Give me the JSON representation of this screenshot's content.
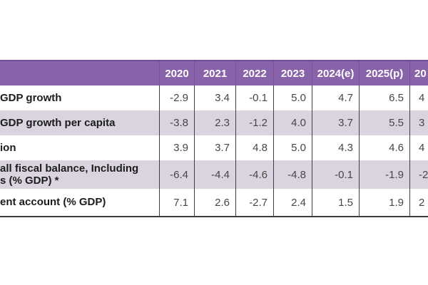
{
  "colors": {
    "header_bg": "#8963aa",
    "header_text": "#ffffff",
    "row_band": "#dad4e0",
    "row_plain": "#ffffff",
    "divider": "#3f3f3f",
    "bottom_border": "#3c3c3c"
  },
  "chart_data": {
    "type": "table",
    "title": "",
    "columns": [
      "2020",
      "2021",
      "2022",
      "2023",
      "2024(e)",
      "2025(p)",
      "20"
    ],
    "row_labels": [
      "GDP growth",
      "GDP growth per capita",
      "ion",
      "all fiscal balance, Including\ns (% GDP) *",
      "ent account (% GDP)"
    ],
    "rows": [
      [
        "-2.9",
        "3.4",
        "-0.1",
        "5.0",
        "4.7",
        "6.5",
        "4"
      ],
      [
        "-3.8",
        "2.3",
        "-1.2",
        "4.0",
        "3.7",
        "5.5",
        "3"
      ],
      [
        "3.9",
        "3.7",
        "4.8",
        "5.0",
        "4.3",
        "4.6",
        "4"
      ],
      [
        "-6.4",
        "-4.4",
        "-4.6",
        "-4.8",
        "-0.1",
        "-1.9",
        "-2"
      ],
      [
        "7.1",
        "2.6",
        "-2.7",
        "2.4",
        "1.5",
        "1.9",
        "2"
      ]
    ]
  }
}
